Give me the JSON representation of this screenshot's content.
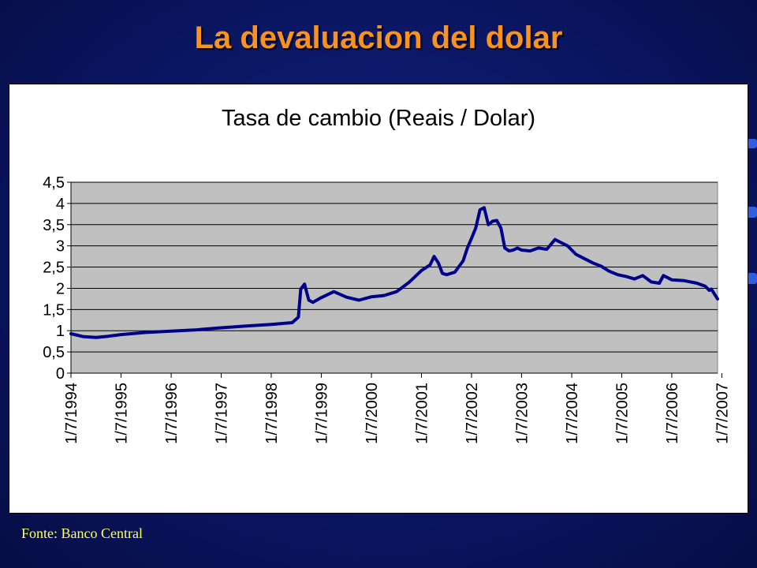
{
  "slide": {
    "title": "La devaluacion del dolar",
    "source": "Fonte: Banco Central"
  },
  "colors": {
    "background": "#0b1664",
    "title": "#f7931e",
    "source": "#ffff66",
    "plot_area": "#c0c0c0",
    "series_line": "#00008b",
    "decoration": "#2f5fe0"
  },
  "chart_data": {
    "type": "line",
    "title": "Tasa de cambio (Reais / Dolar)",
    "xlabel": "",
    "ylabel": "",
    "ylim": [
      0,
      4.5
    ],
    "yticks": [
      0,
      0.5,
      1,
      1.5,
      2,
      2.5,
      3,
      3.5,
      4,
      4.5
    ],
    "ytick_labels": [
      "0",
      "0,5",
      "1",
      "1,5",
      "2",
      "2,5",
      "3",
      "3,5",
      "4",
      "4,5"
    ],
    "xlim": [
      "1/7/1994",
      "31/5/2007"
    ],
    "xticks": [
      "1/7/1994",
      "1/7/1995",
      "1/7/1996",
      "1/7/1997",
      "1/7/1998",
      "1/7/1999",
      "1/7/2000",
      "1/7/2001",
      "1/7/2002",
      "1/7/2003",
      "1/7/2004",
      "1/7/2005",
      "1/7/2006",
      "1/7/2007"
    ],
    "grid": "horizontal",
    "legend": "none",
    "series": [
      {
        "x": [
          "1/7/1994",
          "1/10/1994",
          "1/1/1995",
          "1/4/1995",
          "1/7/1995",
          "1/1/1996",
          "1/7/1996",
          "1/1/1997",
          "1/7/1997",
          "1/1/1998",
          "1/7/1998",
          "1/12/1998",
          "15/1/1999",
          "1/2/1999",
          "1/3/1999",
          "1/4/1999",
          "1/5/1999",
          "1/7/1999",
          "1/10/1999",
          "1/1/2000",
          "1/4/2000",
          "1/7/2000",
          "1/10/2000",
          "1/1/2001",
          "1/4/2001",
          "1/7/2001",
          "1/9/2001",
          "1/10/2001",
          "1/11/2001",
          "1/12/2001",
          "1/1/2002",
          "1/3/2002",
          "1/5/2002",
          "1/6/2002",
          "1/7/2002",
          "1/8/2002",
          "1/9/2002",
          "1/10/2002",
          "1/11/2002",
          "1/12/2002",
          "1/1/2003",
          "1/2/2003",
          "1/3/2003",
          "1/4/2003",
          "1/5/2003",
          "1/6/2003",
          "1/7/2003",
          "1/9/2003",
          "1/11/2003",
          "1/1/2004",
          "1/3/2004",
          "1/5/2004",
          "1/6/2004",
          "1/8/2004",
          "1/10/2004",
          "1/12/2004",
          "1/2/2005",
          "1/4/2005",
          "1/6/2005",
          "1/8/2005",
          "1/10/2005",
          "1/12/2005",
          "1/2/2006",
          "1/4/2006",
          "1/5/2006",
          "1/7/2006",
          "1/10/2006",
          "1/1/2007",
          "1/3/2007",
          "1/4/2007",
          "15/4/2007",
          "31/5/2007"
        ],
        "values": [
          0.93,
          0.86,
          0.84,
          0.87,
          0.91,
          0.96,
          0.99,
          1.02,
          1.07,
          1.11,
          1.15,
          1.19,
          1.32,
          1.98,
          2.1,
          1.72,
          1.67,
          1.78,
          1.92,
          1.79,
          1.72,
          1.8,
          1.83,
          1.92,
          2.14,
          2.42,
          2.55,
          2.75,
          2.6,
          2.35,
          2.32,
          2.38,
          2.65,
          2.95,
          3.18,
          3.42,
          3.85,
          3.9,
          3.5,
          3.58,
          3.6,
          3.42,
          2.95,
          2.88,
          2.9,
          2.95,
          2.9,
          2.88,
          2.95,
          2.92,
          3.15,
          3.05,
          3.0,
          2.8,
          2.7,
          2.6,
          2.52,
          2.4,
          2.32,
          2.28,
          2.22,
          2.3,
          2.15,
          2.12,
          2.3,
          2.2,
          2.18,
          2.12,
          2.05,
          1.95,
          1.98,
          1.75
        ]
      }
    ]
  }
}
